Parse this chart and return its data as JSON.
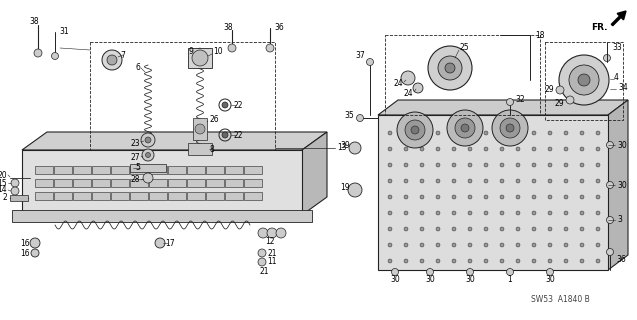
{
  "bg_color": "#ffffff",
  "diagram_ref": "SW53  A1840 B",
  "fig_width": 6.37,
  "fig_height": 3.2,
  "dpi": 100,
  "line_color": "#222222",
  "gray_light": "#cccccc",
  "gray_mid": "#999999",
  "gray_dark": "#666666"
}
